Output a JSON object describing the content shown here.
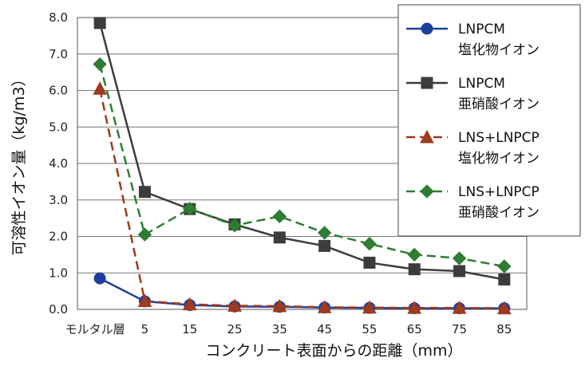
{
  "chart_data": {
    "type": "line",
    "xlabel": "コンクリート表面からの距離（mm）",
    "ylabel": "可溶性イオン量（kg/m3）",
    "categories": [
      "モルタル層",
      "5",
      "15",
      "25",
      "35",
      "45",
      "55",
      "65",
      "75",
      "85"
    ],
    "ylim": [
      0,
      8
    ],
    "yticks": [
      "0.0",
      "1.0",
      "2.0",
      "3.0",
      "4.0",
      "5.0",
      "6.0",
      "7.0",
      "8.0"
    ],
    "grid": true,
    "legend_position": "top-right",
    "series": [
      {
        "name": "LNPCM\n塩化物イオン",
        "line1": "LNPCM",
        "line2": "塩化物イオン",
        "color": "#1f3f9f",
        "marker": "circle",
        "dash": false,
        "values": [
          0.85,
          0.22,
          0.12,
          0.08,
          0.07,
          0.05,
          0.04,
          0.03,
          0.03,
          0.03
        ]
      },
      {
        "name": "LNPCM\n亜硝酸イオン",
        "line1": "LNPCM",
        "line2": "亜硝酸イオン",
        "color": "#3c3c3c",
        "marker": "square",
        "dash": false,
        "values": [
          7.85,
          3.22,
          2.75,
          2.33,
          1.97,
          1.74,
          1.28,
          1.1,
          1.05,
          0.82
        ]
      },
      {
        "name": "LNS+LNPCP\n塩化物イオン",
        "line1": "LNS+LNPCP",
        "line2": "塩化物イオン",
        "color": "#9e3a1e",
        "marker": "triangle",
        "dash": true,
        "values": [
          6.05,
          0.23,
          0.14,
          0.1,
          0.09,
          0.06,
          0.05,
          0.04,
          0.04,
          0.03
        ]
      },
      {
        "name": "LNS+LNPCP\n亜硝酸イオン",
        "line1": "LNS+LNPCP",
        "line2": "亜硝酸イオン",
        "color": "#2e7d32",
        "marker": "diamond",
        "dash": true,
        "values": [
          6.72,
          2.05,
          2.76,
          2.3,
          2.55,
          2.1,
          1.8,
          1.5,
          1.4,
          1.18
        ]
      }
    ]
  }
}
